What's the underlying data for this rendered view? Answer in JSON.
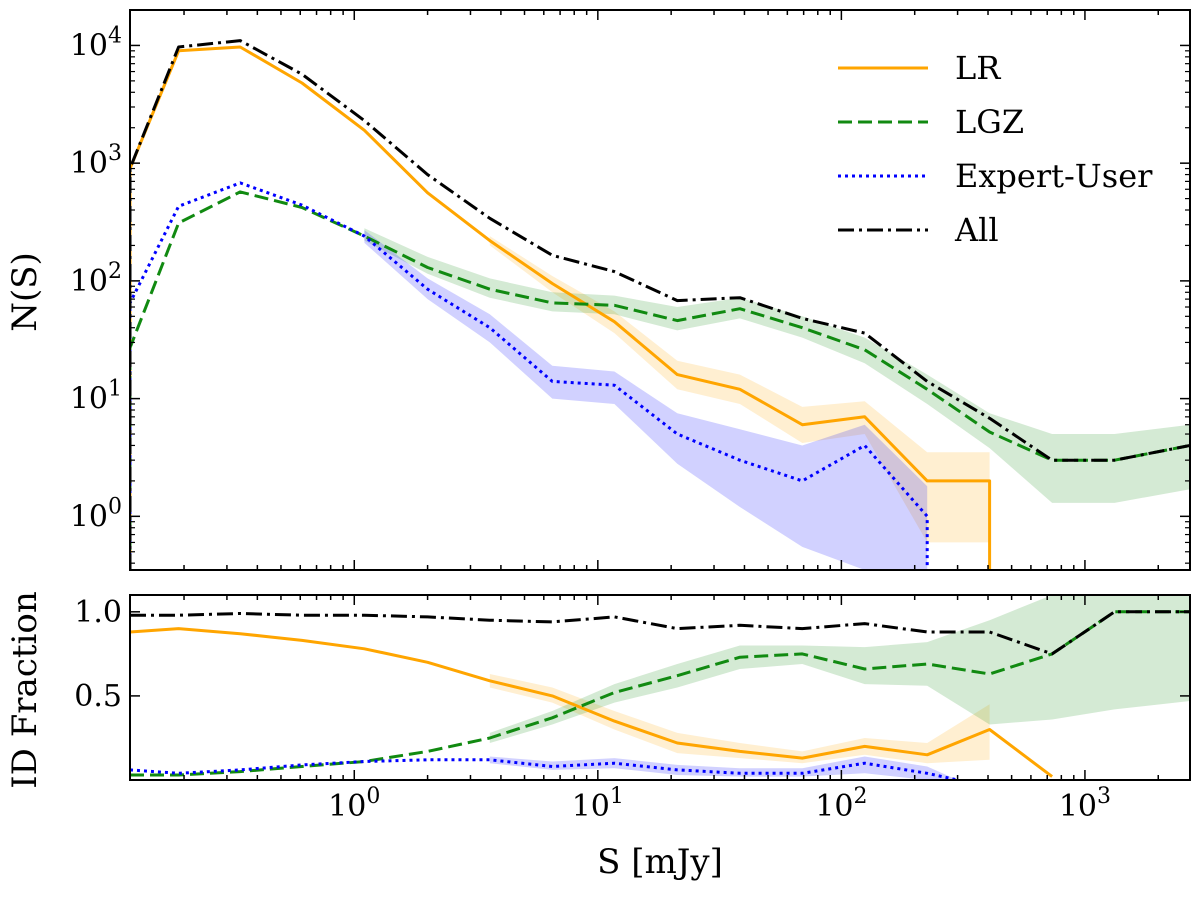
{
  "chart_data": [
    {
      "type": "line",
      "panel": "top",
      "xlabel": "",
      "ylabel": "N(S)",
      "xscale": "log",
      "yscale": "log",
      "xlim": [
        0.12,
        2700
      ],
      "ylim": [
        0.35,
        20000
      ],
      "y_tick_labels": [
        "10^0",
        "10^1",
        "10^2",
        "10^3",
        "10^4"
      ],
      "grid": false,
      "legend_position": "top-right",
      "series": [
        {
          "name": "LR",
          "color": "#FFA500",
          "style": "solid",
          "x": [
            0.12,
            0.12,
            0.19,
            0.34,
            0.61,
            1.1,
            2.0,
            3.6,
            6.5,
            11.7,
            21.2,
            38.3,
            69.1,
            124.7,
            225,
            240,
            406,
            406
          ],
          "y": [
            0.35,
            900,
            9000,
            9700,
            4800,
            1900,
            560,
            220,
            95,
            45,
            16,
            12,
            6,
            7,
            2,
            2,
            2,
            0.35
          ],
          "band_lower": [
            null,
            null,
            null,
            null,
            null,
            null,
            null,
            200,
            80,
            36,
            12,
            9,
            4.2,
            5,
            0.6,
            0.6,
            0.6,
            null
          ],
          "band_upper": [
            null,
            null,
            null,
            null,
            null,
            null,
            null,
            240,
            110,
            55,
            21,
            16,
            8.5,
            9.5,
            3.5,
            3.5,
            3.5,
            null
          ]
        },
        {
          "name": "LGZ",
          "color": "#118A11",
          "style": "dashed",
          "x": [
            0.12,
            0.12,
            0.19,
            0.34,
            0.61,
            1.1,
            2.0,
            3.6,
            6.5,
            11.7,
            21.2,
            38.3,
            69.1,
            124.7,
            225,
            406,
            733,
            1323,
            2700
          ],
          "y": [
            0.35,
            27,
            310,
            570,
            420,
            240,
            130,
            85,
            65,
            62,
            46,
            58,
            40,
            26,
            12,
            5.2,
            3,
            3,
            4
          ],
          "band_lower": [
            null,
            null,
            null,
            null,
            null,
            220,
            115,
            72,
            55,
            52,
            38,
            48,
            33,
            20,
            9,
            3.8,
            1.3,
            1.3,
            1.7
          ],
          "band_upper": [
            null,
            null,
            null,
            null,
            null,
            280,
            160,
            105,
            80,
            75,
            60,
            72,
            50,
            33,
            16,
            7.5,
            5,
            5,
            6
          ]
        },
        {
          "name": "Expert-User",
          "color": "#0000FF",
          "style": "dotted",
          "x": [
            0.12,
            0.12,
            0.19,
            0.34,
            0.61,
            1.1,
            2.0,
            3.6,
            6.5,
            11.7,
            21.2,
            38.3,
            69.1,
            124.7,
            225,
            225
          ],
          "y": [
            0.35,
            65,
            430,
            680,
            440,
            240,
            85,
            40,
            14,
            13,
            5,
            3,
            2,
            4,
            1,
            0.35
          ],
          "band_lower": [
            null,
            null,
            null,
            null,
            null,
            210,
            70,
            30,
            10,
            9,
            2.8,
            1.2,
            0.55,
            0.35,
            0.35,
            null
          ],
          "band_upper": [
            null,
            null,
            null,
            null,
            null,
            270,
            105,
            52,
            19,
            17,
            7.5,
            5.5,
            4,
            6,
            1.8,
            null
          ]
        },
        {
          "name": "All",
          "color": "#000000",
          "style": "dashdot",
          "x": [
            0.12,
            0.12,
            0.19,
            0.34,
            0.61,
            1.1,
            2.0,
            3.6,
            6.5,
            11.7,
            21.2,
            38.3,
            69.1,
            124.7,
            225,
            406,
            733,
            1323,
            2700
          ],
          "y": [
            0.35,
            900,
            9700,
            11000,
            5700,
            2300,
            800,
            340,
            165,
            120,
            68,
            72,
            48,
            36,
            14,
            6.8,
            3,
            3,
            4
          ]
        }
      ]
    },
    {
      "type": "line",
      "panel": "bottom",
      "xlabel": "S [mJy]",
      "ylabel": "ID Fraction",
      "xscale": "log",
      "yscale": "linear",
      "xlim": [
        0.12,
        2700
      ],
      "ylim": [
        0,
        1.1
      ],
      "x_tick_labels": [
        "10^0",
        "10^1",
        "10^2",
        "10^3"
      ],
      "y_tick_labels": [
        "0.5",
        "1.0"
      ],
      "grid": false,
      "series": [
        {
          "name": "LR",
          "color": "#FFA500",
          "style": "solid",
          "x": [
            0.12,
            0.19,
            0.34,
            0.61,
            1.1,
            2.0,
            3.6,
            6.5,
            11.7,
            21.2,
            38.3,
            69.1,
            124.7,
            225,
            406,
            733
          ],
          "y": [
            0.88,
            0.9,
            0.87,
            0.83,
            0.78,
            0.7,
            0.59,
            0.5,
            0.35,
            0.22,
            0.17,
            0.13,
            0.2,
            0.15,
            0.3,
            0.02
          ],
          "band_lower": [
            null,
            null,
            null,
            null,
            null,
            null,
            0.55,
            0.46,
            0.3,
            0.16,
            0.13,
            0.1,
            0.15,
            0.1,
            0.12,
            null
          ],
          "band_upper": [
            null,
            null,
            null,
            null,
            null,
            null,
            0.63,
            0.55,
            0.41,
            0.28,
            0.22,
            0.17,
            0.25,
            0.22,
            0.45,
            null
          ]
        },
        {
          "name": "LGZ",
          "color": "#118A11",
          "style": "dashed",
          "x": [
            0.12,
            0.19,
            0.34,
            0.61,
            1.1,
            2.0,
            3.6,
            6.5,
            11.7,
            21.2,
            38.3,
            69.1,
            124.7,
            225,
            406,
            733,
            1323,
            2700
          ],
          "y": [
            0.03,
            0.03,
            0.05,
            0.08,
            0.11,
            0.17,
            0.25,
            0.37,
            0.52,
            0.62,
            0.73,
            0.75,
            0.66,
            0.69,
            0.63,
            0.75,
            1.0,
            1.0
          ],
          "band_lower": [
            null,
            null,
            null,
            null,
            null,
            null,
            0.22,
            0.33,
            0.46,
            0.55,
            0.66,
            0.69,
            0.57,
            0.56,
            0.33,
            0.36,
            0.42,
            0.47
          ],
          "band_upper": [
            null,
            null,
            null,
            null,
            null,
            null,
            0.28,
            0.41,
            0.57,
            0.69,
            0.8,
            0.8,
            0.79,
            0.82,
            0.95,
            1.1,
            1.1,
            1.1
          ]
        },
        {
          "name": "Expert-User",
          "color": "#0000FF",
          "style": "dotted",
          "x": [
            0.12,
            0.19,
            0.34,
            0.61,
            1.1,
            2.0,
            3.6,
            6.5,
            11.7,
            21.2,
            38.3,
            69.1,
            124.7,
            225,
            300
          ],
          "y": [
            0.06,
            0.04,
            0.06,
            0.09,
            0.11,
            0.12,
            0.12,
            0.08,
            0.1,
            0.06,
            0.04,
            0.04,
            0.1,
            0.04,
            0.0
          ],
          "band_lower": [
            null,
            null,
            null,
            null,
            null,
            null,
            0.1,
            0.06,
            0.07,
            0.03,
            0.02,
            0.02,
            0.04,
            0.0,
            0.0
          ],
          "band_upper": [
            null,
            null,
            null,
            null,
            null,
            null,
            0.14,
            0.11,
            0.13,
            0.09,
            0.07,
            0.07,
            0.14,
            0.08,
            0.0
          ]
        },
        {
          "name": "All",
          "color": "#000000",
          "style": "dashdot",
          "x": [
            0.12,
            0.19,
            0.34,
            0.61,
            1.1,
            2.0,
            3.6,
            6.5,
            11.7,
            21.2,
            38.3,
            69.1,
            124.7,
            225,
            406,
            733,
            1323,
            2700
          ],
          "y": [
            0.98,
            0.98,
            0.99,
            0.98,
            0.98,
            0.97,
            0.95,
            0.94,
            0.97,
            0.9,
            0.92,
            0.9,
            0.93,
            0.88,
            0.88,
            0.75,
            1.0,
            1.0
          ]
        }
      ]
    }
  ]
}
